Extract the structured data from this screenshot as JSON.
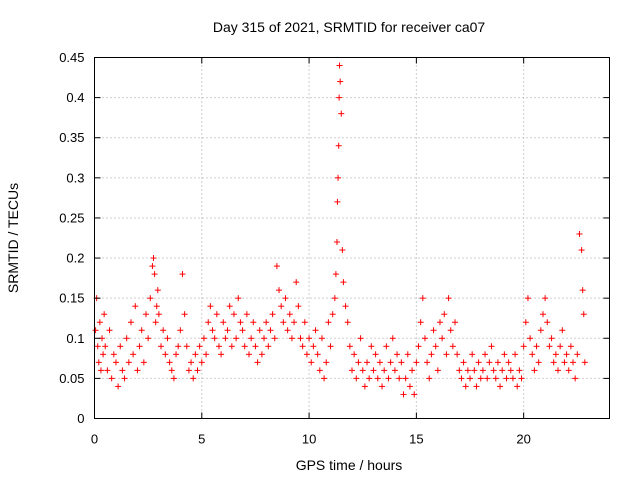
{
  "chart_data": {
    "type": "scatter",
    "title": "Day 315 of 2021, SRMTID for receiver ca07",
    "xlabel": "GPS time / hours",
    "ylabel": "SRMTID / TECUs",
    "xlim": [
      0,
      24
    ],
    "ylim": [
      0,
      0.45
    ],
    "xticks": [
      0,
      5,
      10,
      15,
      20
    ],
    "xtick_labels": [
      "0",
      "5",
      "10",
      "15",
      "20"
    ],
    "yticks": [
      0,
      0.05,
      0.1,
      0.15,
      0.2,
      0.25,
      0.3,
      0.35,
      0.4,
      0.45
    ],
    "ytick_labels": [
      "0",
      "0.05",
      "0.1",
      "0.15",
      "0.2",
      "0.25",
      "0.3",
      "0.35",
      "0.4",
      "0.45"
    ],
    "grid": true,
    "marker": "+",
    "color": "#ff0000",
    "series": [
      {
        "name": "SRMTID",
        "x": [
          0.05,
          0.1,
          0.15,
          0.2,
          0.25,
          0.3,
          0.35,
          0.4,
          0.45,
          0.5,
          0.6,
          0.7,
          0.8,
          0.9,
          1.0,
          1.1,
          1.2,
          1.3,
          1.4,
          1.5,
          1.6,
          1.7,
          1.8,
          1.9,
          2.0,
          2.1,
          2.2,
          2.3,
          2.4,
          2.5,
          2.6,
          2.7,
          2.75,
          2.8,
          2.85,
          2.9,
          2.95,
          3.0,
          3.1,
          3.2,
          3.3,
          3.4,
          3.5,
          3.6,
          3.7,
          3.8,
          3.9,
          4.0,
          4.1,
          4.2,
          4.3,
          4.4,
          4.5,
          4.6,
          4.7,
          4.8,
          4.9,
          5.0,
          5.1,
          5.2,
          5.3,
          5.4,
          5.5,
          5.6,
          5.7,
          5.8,
          5.9,
          6.0,
          6.1,
          6.2,
          6.3,
          6.4,
          6.5,
          6.6,
          6.7,
          6.8,
          6.9,
          7.0,
          7.1,
          7.2,
          7.3,
          7.4,
          7.5,
          7.6,
          7.7,
          7.8,
          7.9,
          8.0,
          8.1,
          8.2,
          8.3,
          8.4,
          8.5,
          8.6,
          8.7,
          8.8,
          8.9,
          9.0,
          9.1,
          9.2,
          9.3,
          9.4,
          9.5,
          9.6,
          9.7,
          9.8,
          9.9,
          10.0,
          10.1,
          10.2,
          10.3,
          10.4,
          10.5,
          10.6,
          10.7,
          10.8,
          10.9,
          11.0,
          11.1,
          11.2,
          11.25,
          11.3,
          11.32,
          11.35,
          11.38,
          11.4,
          11.42,
          11.45,
          11.5,
          11.55,
          11.6,
          11.7,
          11.8,
          11.9,
          12.0,
          12.1,
          12.2,
          12.3,
          12.4,
          12.5,
          12.6,
          12.7,
          12.8,
          12.9,
          13.0,
          13.1,
          13.2,
          13.3,
          13.4,
          13.5,
          13.6,
          13.7,
          13.8,
          13.9,
          14.0,
          14.1,
          14.2,
          14.3,
          14.4,
          14.5,
          14.6,
          14.7,
          14.8,
          14.9,
          15.0,
          15.1,
          15.2,
          15.3,
          15.4,
          15.5,
          15.6,
          15.7,
          15.8,
          15.9,
          16.0,
          16.1,
          16.2,
          16.3,
          16.4,
          16.5,
          16.6,
          16.7,
          16.8,
          16.9,
          17.0,
          17.1,
          17.2,
          17.3,
          17.4,
          17.5,
          17.6,
          17.7,
          17.8,
          17.9,
          18.0,
          18.1,
          18.2,
          18.3,
          18.4,
          18.5,
          18.6,
          18.7,
          18.8,
          18.9,
          19.0,
          19.1,
          19.2,
          19.3,
          19.4,
          19.5,
          19.6,
          19.7,
          19.8,
          19.9,
          20.0,
          20.1,
          20.2,
          20.3,
          20.4,
          20.5,
          20.6,
          20.7,
          20.8,
          20.9,
          21.0,
          21.1,
          21.2,
          21.3,
          21.4,
          21.5,
          21.6,
          21.7,
          21.8,
          21.9,
          22.0,
          22.1,
          22.2,
          22.3,
          22.4,
          22.5,
          22.6,
          22.7,
          22.75,
          22.8,
          22.85
        ],
        "y": [
          0.11,
          0.15,
          0.09,
          0.07,
          0.12,
          0.06,
          0.1,
          0.08,
          0.13,
          0.09,
          0.06,
          0.11,
          0.05,
          0.08,
          0.07,
          0.04,
          0.09,
          0.06,
          0.05,
          0.1,
          0.07,
          0.12,
          0.08,
          0.14,
          0.06,
          0.09,
          0.11,
          0.07,
          0.13,
          0.1,
          0.15,
          0.19,
          0.2,
          0.18,
          0.12,
          0.14,
          0.16,
          0.13,
          0.09,
          0.11,
          0.08,
          0.1,
          0.07,
          0.06,
          0.05,
          0.08,
          0.09,
          0.11,
          0.18,
          0.13,
          0.09,
          0.06,
          0.07,
          0.05,
          0.08,
          0.06,
          0.09,
          0.07,
          0.1,
          0.08,
          0.12,
          0.14,
          0.11,
          0.1,
          0.13,
          0.09,
          0.08,
          0.12,
          0.1,
          0.11,
          0.14,
          0.09,
          0.13,
          0.1,
          0.15,
          0.12,
          0.11,
          0.09,
          0.13,
          0.08,
          0.1,
          0.12,
          0.09,
          0.07,
          0.11,
          0.08,
          0.1,
          0.12,
          0.09,
          0.11,
          0.13,
          0.1,
          0.19,
          0.16,
          0.14,
          0.12,
          0.15,
          0.11,
          0.13,
          0.1,
          0.12,
          0.17,
          0.14,
          0.1,
          0.09,
          0.12,
          0.08,
          0.1,
          0.07,
          0.09,
          0.11,
          0.08,
          0.06,
          0.1,
          0.05,
          0.07,
          0.12,
          0.09,
          0.13,
          0.15,
          0.18,
          0.22,
          0.27,
          0.3,
          0.34,
          0.4,
          0.44,
          0.42,
          0.38,
          0.21,
          0.17,
          0.14,
          0.12,
          0.09,
          0.06,
          0.08,
          0.05,
          0.07,
          0.1,
          0.06,
          0.04,
          0.07,
          0.05,
          0.09,
          0.06,
          0.08,
          0.05,
          0.07,
          0.04,
          0.06,
          0.09,
          0.05,
          0.07,
          0.1,
          0.06,
          0.08,
          0.05,
          0.07,
          0.03,
          0.05,
          0.08,
          0.04,
          0.06,
          0.03,
          0.07,
          0.09,
          0.12,
          0.15,
          0.1,
          0.07,
          0.05,
          0.08,
          0.11,
          0.09,
          0.06,
          0.12,
          0.1,
          0.13,
          0.08,
          0.15,
          0.11,
          0.09,
          0.12,
          0.08,
          0.06,
          0.05,
          0.07,
          0.04,
          0.06,
          0.05,
          0.08,
          0.06,
          0.04,
          0.07,
          0.05,
          0.06,
          0.08,
          0.05,
          0.07,
          0.09,
          0.06,
          0.05,
          0.07,
          0.04,
          0.06,
          0.08,
          0.05,
          0.07,
          0.06,
          0.05,
          0.08,
          0.04,
          0.06,
          0.05,
          0.09,
          0.12,
          0.15,
          0.1,
          0.08,
          0.06,
          0.09,
          0.07,
          0.11,
          0.13,
          0.15,
          0.12,
          0.09,
          0.1,
          0.07,
          0.08,
          0.06,
          0.09,
          0.11,
          0.07,
          0.08,
          0.06,
          0.09,
          0.07,
          0.05,
          0.08,
          0.23,
          0.21,
          0.16,
          0.13,
          0.07
        ]
      }
    ]
  }
}
